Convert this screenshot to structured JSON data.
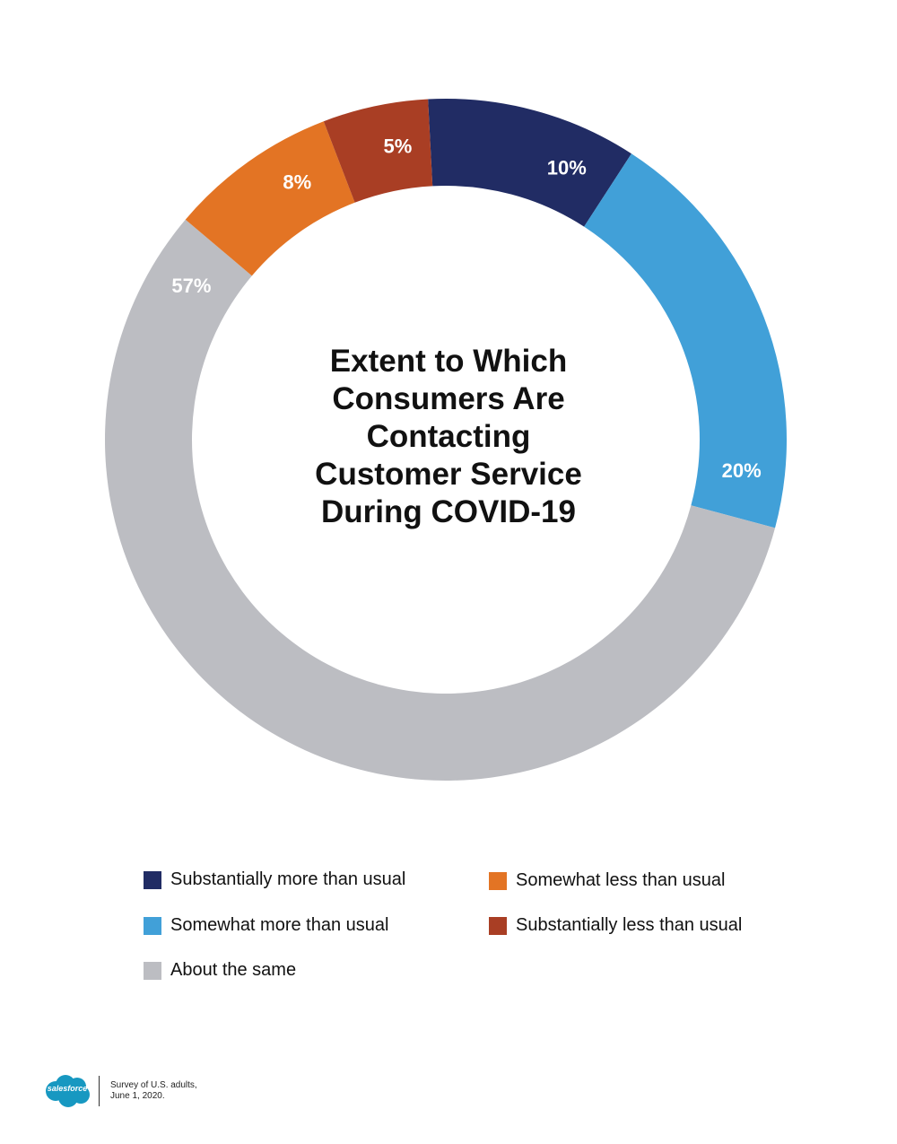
{
  "chart_data": {
    "type": "pie",
    "title": "Extent to Which Consumers Are Contacting Customer Service During COVID-19",
    "title_lines": [
      "Extent to Which",
      "Consumers Are",
      "Contacting",
      "Customer Service",
      "During COVID-19"
    ],
    "categories": [
      "Substantially more than usual",
      "Somewhat more than usual",
      "About the same",
      "Somewhat less than usual",
      "Substantially less than usual"
    ],
    "values": [
      10,
      20,
      57,
      8,
      5
    ],
    "labels": [
      "10%",
      "20%",
      "57%",
      "8%",
      "5%"
    ],
    "colors": [
      "#212c64",
      "#41a0d8",
      "#bcbdc2",
      "#e37424",
      "#a93e24"
    ],
    "legend_position": "bottom"
  },
  "footer": {
    "logo_text": "salesforce",
    "note_line1": "Survey of U.S. adults,",
    "note_line2": "June 1, 2020."
  }
}
